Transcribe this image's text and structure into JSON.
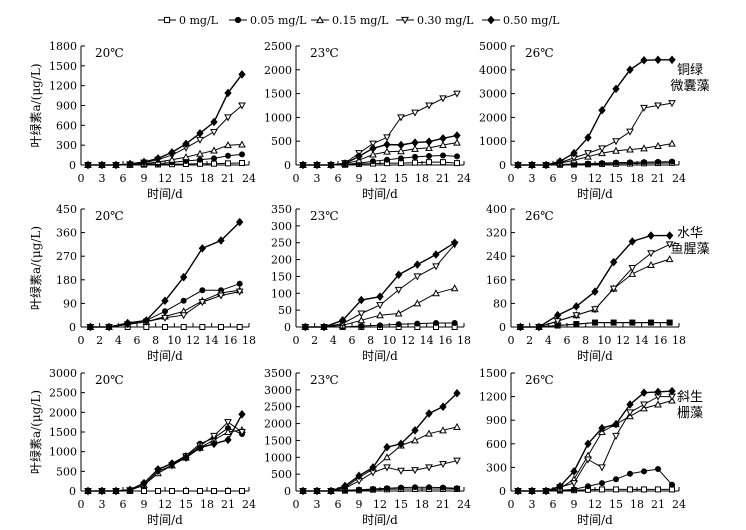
{
  "chart_data": {
    "type": "line",
    "concentrations": [
      "0 mg/L",
      "0.05 mg/L",
      "0.15 mg/L",
      "0.30 mg/L",
      "0.50 mg/L"
    ],
    "legend_position": "top",
    "ylabel": "叶绿素a/(μg/L)",
    "xlabel": "时间/d",
    "rows": [
      {
        "species": [
          "铜绿",
          "微囊藻"
        ],
        "x": [
          1,
          3,
          5,
          7,
          9,
          11,
          13,
          15,
          17,
          19,
          21,
          23
        ],
        "xlim": [
          0,
          24
        ],
        "xticks": [
          0,
          3,
          6,
          9,
          12,
          15,
          18,
          21,
          24
        ],
        "panels": [
          {
            "temp": "20℃",
            "ylim": [
              0,
              1800
            ],
            "yticks": [
              300,
              600,
              900,
              1200,
              1500,
              1800
            ],
            "series": [
              {
                "values": [
                  0,
                  0,
                  0,
                  2,
                  5,
                  8,
                  12,
                  15,
                  18,
                  20,
                  25,
                  30
                ]
              },
              {
                "values": [
                  0,
                  0,
                  0,
                  5,
                  12,
                  20,
                  40,
                  60,
                  80,
                  100,
                  140,
                  160
                ]
              },
              {
                "values": [
                  0,
                  0,
                  0,
                  5,
                  18,
                  45,
                  80,
                  120,
                  170,
                  220,
                  300,
                  310
                ]
              },
              {
                "values": [
                  0,
                  0,
                  0,
                  10,
                  35,
                  80,
                  150,
                  260,
                  380,
                  500,
                  720,
                  900
                ]
              },
              {
                "values": [
                  0,
                  0,
                  0,
                  15,
                  45,
                  100,
                  190,
                  320,
                  480,
                  650,
                  1090,
                  1370
                ]
              }
            ]
          },
          {
            "temp": "23℃",
            "ylim": [
              0,
              2500
            ],
            "yticks": [
              500,
              1000,
              1500,
              2000,
              2500
            ],
            "series": [
              {
                "values": [
                  0,
                  0,
                  0,
                  5,
                  20,
                  30,
                  40,
                  40,
                  50,
                  60,
                  60,
                  40
                ]
              },
              {
                "values": [
                  0,
                  0,
                  0,
                  10,
                  40,
                  80,
                  110,
                  140,
                  170,
                  190,
                  200,
                  180
                ]
              },
              {
                "values": [
                  0,
                  0,
                  0,
                  20,
                  100,
                  220,
                  280,
                  290,
                  340,
                  360,
                  420,
                  470
                ]
              },
              {
                "values": [
                  0,
                  0,
                  0,
                  40,
                  250,
                  450,
                  580,
                  1000,
                  1100,
                  1250,
                  1400,
                  1500
                ]
              },
              {
                "values": [
                  0,
                  0,
                  0,
                  30,
                  180,
                  350,
                  430,
                  420,
                  470,
                  490,
                  560,
                  620
                ]
              }
            ]
          },
          {
            "temp": "26℃",
            "ylim": [
              0,
              5000
            ],
            "yticks": [
              1000,
              2000,
              3000,
              4000,
              5000
            ],
            "series": [
              {
                "values": [
                  0,
                  0,
                  0,
                  10,
                  20,
                  30,
                  40,
                  50,
                  60,
                  70,
                  80,
                  90
                ]
              },
              {
                "values": [
                  0,
                  0,
                  0,
                  20,
                  40,
                  60,
                  80,
                  100,
                  110,
                  120,
                  130,
                  140
                ]
              },
              {
                "values": [
                  0,
                  0,
                  0,
                  80,
                  200,
                  350,
                  500,
                  600,
                  650,
                  700,
                  800,
                  900
                ]
              },
              {
                "values": [
                  0,
                  0,
                  0,
                  100,
                  300,
                  500,
                  700,
                  1000,
                  1400,
                  2400,
                  2500,
                  2600
                ]
              },
              {
                "values": [
                  0,
                  0,
                  0,
                  150,
                  500,
                  1150,
                  2300,
                  3200,
                  4000,
                  4400,
                  4420,
                  4420
                ]
              }
            ]
          }
        ]
      },
      {
        "species": [
          "水华",
          "鱼腥藻"
        ],
        "x": [
          1,
          3,
          5,
          7,
          9,
          11,
          13,
          15,
          17
        ],
        "xlim": [
          0,
          18
        ],
        "xticks": [
          0,
          2,
          4,
          6,
          8,
          10,
          12,
          14,
          16,
          18
        ],
        "panels": [
          {
            "temp": "20℃",
            "ylim": [
              0,
              450
            ],
            "yticks": [
              90,
              180,
              270,
              360,
              450
            ],
            "series": [
              {
                "values": [
                  0,
                  0,
                  0,
                  0,
                  0,
                  0,
                  0,
                  0,
                  0
                ]
              },
              {
                "values": [
                  0,
                  0,
                  15,
                  25,
                  60,
                  100,
                  140,
                  140,
                  165
                ]
              },
              {
                "values": [
                  0,
                  0,
                  10,
                  20,
                  40,
                  60,
                  100,
                  130,
                  140
                ]
              },
              {
                "values": [
                  0,
                  0,
                  10,
                  20,
                  35,
                  45,
                  95,
                  120,
                  135
                ]
              },
              {
                "values": [
                  0,
                  0,
                  15,
                  25,
                  100,
                  190,
                  300,
                  330,
                  400
                ]
              }
            ]
          },
          {
            "temp": "23℃",
            "ylim": [
              0,
              350
            ],
            "yticks": [
              50,
              100,
              150,
              200,
              250,
              300,
              350
            ],
            "series": [
              {
                "values": [
                  0,
                  0,
                  0,
                  0,
                  0,
                  0,
                  0,
                  0,
                  0
                ]
              },
              {
                "values": [
                  0,
                  0,
                  0,
                  3,
                  5,
                  8,
                  10,
                  12,
                  12
                ]
              },
              {
                "values": [
                  0,
                  0,
                  5,
                  20,
                  35,
                  40,
                  70,
                  100,
                  115
                ]
              },
              {
                "values": [
                  0,
                  0,
                  10,
                  40,
                  65,
                  110,
                  150,
                  180,
                  245
                ]
              },
              {
                "values": [
                  0,
                  0,
                  20,
                  80,
                  90,
                  155,
                  185,
                  215,
                  250
                ]
              }
            ]
          },
          {
            "temp": "26℃",
            "ylim": [
              0,
              400
            ],
            "yticks": [
              80,
              160,
              240,
              320,
              400
            ],
            "series": [
              {
                "values": [
                  0,
                  0,
                  5,
                  10,
                  15,
                  15,
                  15,
                  15,
                  15
                ]
              },
              {
                "values": [
                  0,
                  0,
                  5,
                  10,
                  15,
                  15,
                  15,
                  15,
                  15
                ]
              },
              {
                "values": [
                  0,
                  0,
                  20,
                  40,
                  60,
                  130,
                  180,
                  210,
                  230
                ]
              },
              {
                "values": [
                  0,
                  0,
                  20,
                  40,
                  60,
                  130,
                  200,
                  250,
                  280
                ]
              },
              {
                "values": [
                  0,
                  0,
                  40,
                  70,
                  120,
                  220,
                  290,
                  310,
                  310
                ]
              }
            ]
          }
        ]
      },
      {
        "species": [
          "斜生",
          "栅藻"
        ],
        "x": [
          1,
          3,
          5,
          7,
          9,
          11,
          13,
          15,
          17,
          19,
          21,
          23
        ],
        "xlim": [
          0,
          24
        ],
        "xticks": [
          0,
          3,
          6,
          9,
          12,
          15,
          18,
          21,
          24
        ],
        "panels": [
          {
            "temp": "20℃",
            "ylim": [
              0,
              3000
            ],
            "yticks": [
              500,
              1000,
              1500,
              2000,
              2500,
              3000
            ],
            "series": [
              {
                "values": [
                  0,
                  0,
                  0,
                  0,
                  0,
                  0,
                  0,
                  0,
                  0,
                  0,
                  0,
                  0
                ]
              },
              {
                "values": [
                  0,
                  0,
                  0,
                  30,
                  200,
                  550,
                  700,
                  900,
                  1200,
                  1350,
                  1600,
                  1450
                ]
              },
              {
                "values": [
                  0,
                  0,
                  0,
                  20,
                  150,
                  450,
                  650,
                  850,
                  1100,
                  1300,
                  1500,
                  1550
                ]
              },
              {
                "values": [
                  0,
                  0,
                  0,
                  20,
                  150,
                  500,
                  650,
                  880,
                  1150,
                  1400,
                  1750,
                  1500
                ]
              },
              {
                "values": [
                  0,
                  0,
                  0,
                  30,
                  200,
                  550,
                  700,
                  850,
                  1100,
                  1200,
                  1300,
                  1950
                ]
              }
            ]
          },
          {
            "temp": "23℃",
            "ylim": [
              0,
              3500
            ],
            "yticks": [
              500,
              1000,
              1500,
              2000,
              2500,
              3000,
              3500
            ],
            "series": [
              {
                "values": [
                  0,
                  0,
                  0,
                  10,
                  20,
                  40,
                  50,
                  60,
                  60,
                  60,
                  60,
                  60
                ]
              },
              {
                "values": [
                  0,
                  0,
                  0,
                  20,
                  40,
                  60,
                  80,
                  100,
                  110,
                  110,
                  100,
                  80
                ]
              },
              {
                "values": [
                  0,
                  0,
                  0,
                  100,
                  400,
                  650,
                  1000,
                  1350,
                  1500,
                  1700,
                  1800,
                  1900
                ]
              },
              {
                "values": [
                  0,
                  0,
                  0,
                  80,
                  300,
                  550,
                  700,
                  600,
                  620,
                  700,
                  800,
                  900
                ]
              },
              {
                "values": [
                  0,
                  0,
                  0,
                  150,
                  450,
                  700,
                  1300,
                  1400,
                  1800,
                  2300,
                  2500,
                  2900
                ]
              }
            ]
          },
          {
            "temp": "26℃",
            "ylim": [
              0,
              1500
            ],
            "yticks": [
              300,
              600,
              900,
              1200,
              1500
            ],
            "series": [
              {
                "values": [
                  0,
                  0,
                  0,
                  5,
                  10,
                  15,
                  20,
                  20,
                  20,
                  20,
                  20,
                  20
                ]
              },
              {
                "values": [
                  0,
                  0,
                  0,
                  10,
                  20,
                  60,
                  100,
                  150,
                  220,
                  250,
                  280,
                  80
                ]
              },
              {
                "values": [
                  0,
                  0,
                  0,
                  30,
                  150,
                  450,
                  750,
                  850,
                  950,
                  1050,
                  1100,
                  1150
                ]
              },
              {
                "values": [
                  0,
                  0,
                  0,
                  50,
                  100,
                  400,
                  300,
                  700,
                  1000,
                  1100,
                  1200,
                  1200
                ]
              },
              {
                "values": [
                  0,
                  0,
                  0,
                  60,
                  250,
                  600,
                  800,
                  850,
                  1100,
                  1250,
                  1260,
                  1270
                ]
              }
            ]
          }
        ]
      }
    ]
  },
  "colors": {
    "ink": "#000000",
    "background": "#ffffff"
  },
  "markers": [
    "square-open",
    "circle-filled",
    "triangle-open",
    "triangle-down-open",
    "diamond-filled"
  ]
}
